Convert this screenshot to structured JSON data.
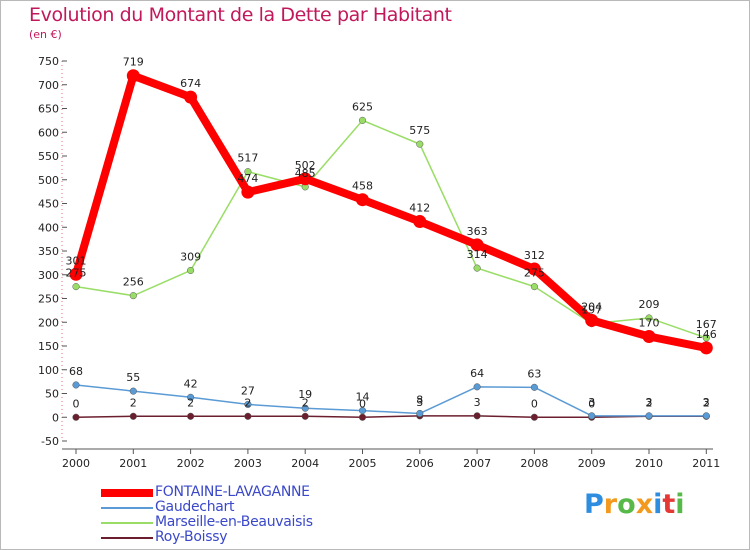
{
  "header": {
    "title": "Evolution du Montant de la Dette par Habitant",
    "unit": "(en €)"
  },
  "logo": {
    "text": "Proxiti",
    "letters": [
      {
        "ch": "P",
        "color": "#2f8de0"
      },
      {
        "ch": "r",
        "color": "#f39a1e"
      },
      {
        "ch": "o",
        "color": "#57b947"
      },
      {
        "ch": "x",
        "color": "#f39a1e"
      },
      {
        "ch": "i",
        "color": "#2f8de0"
      },
      {
        "ch": "t",
        "color": "#e53935"
      },
      {
        "ch": "i",
        "color": "#57b947"
      }
    ]
  },
  "chart_data": {
    "type": "line",
    "title": "Evolution du Montant de la Dette par Habitant",
    "ylabel": "(en €)",
    "xlabel": "",
    "x": [
      "2000",
      "2001",
      "2002",
      "2003",
      "2004",
      "2005",
      "2006",
      "2007",
      "2008",
      "2009",
      "2010",
      "2011"
    ],
    "ylim": [
      -50,
      750
    ],
    "yticks": [
      -50,
      0,
      50,
      100,
      150,
      200,
      250,
      300,
      350,
      400,
      450,
      500,
      550,
      600,
      650,
      700,
      750
    ],
    "grid": false,
    "legend_position": "bottom-left",
    "series": [
      {
        "name": "FONTAINE-LAVAGANNE",
        "color": "#ff0000",
        "values": [
          301,
          719,
          674,
          474,
          502,
          458,
          412,
          363,
          312,
          204,
          170,
          146
        ]
      },
      {
        "name": "Gaudechart",
        "color": "#5b9bd5",
        "values": [
          68,
          55,
          42,
          27,
          19,
          14,
          8,
          64,
          63,
          3,
          3,
          3
        ]
      },
      {
        "name": "Marseille-en-Beauvaisis",
        "color": "#99dd66",
        "values": [
          275,
          256,
          309,
          517,
          485,
          625,
          575,
          314,
          275,
          197,
          209,
          167
        ]
      },
      {
        "name": "Roy-Boissy",
        "color": "#6b1f2e",
        "values": [
          0,
          2,
          2,
          2,
          2,
          0,
          3,
          3,
          0,
          0,
          2,
          2
        ]
      }
    ]
  }
}
